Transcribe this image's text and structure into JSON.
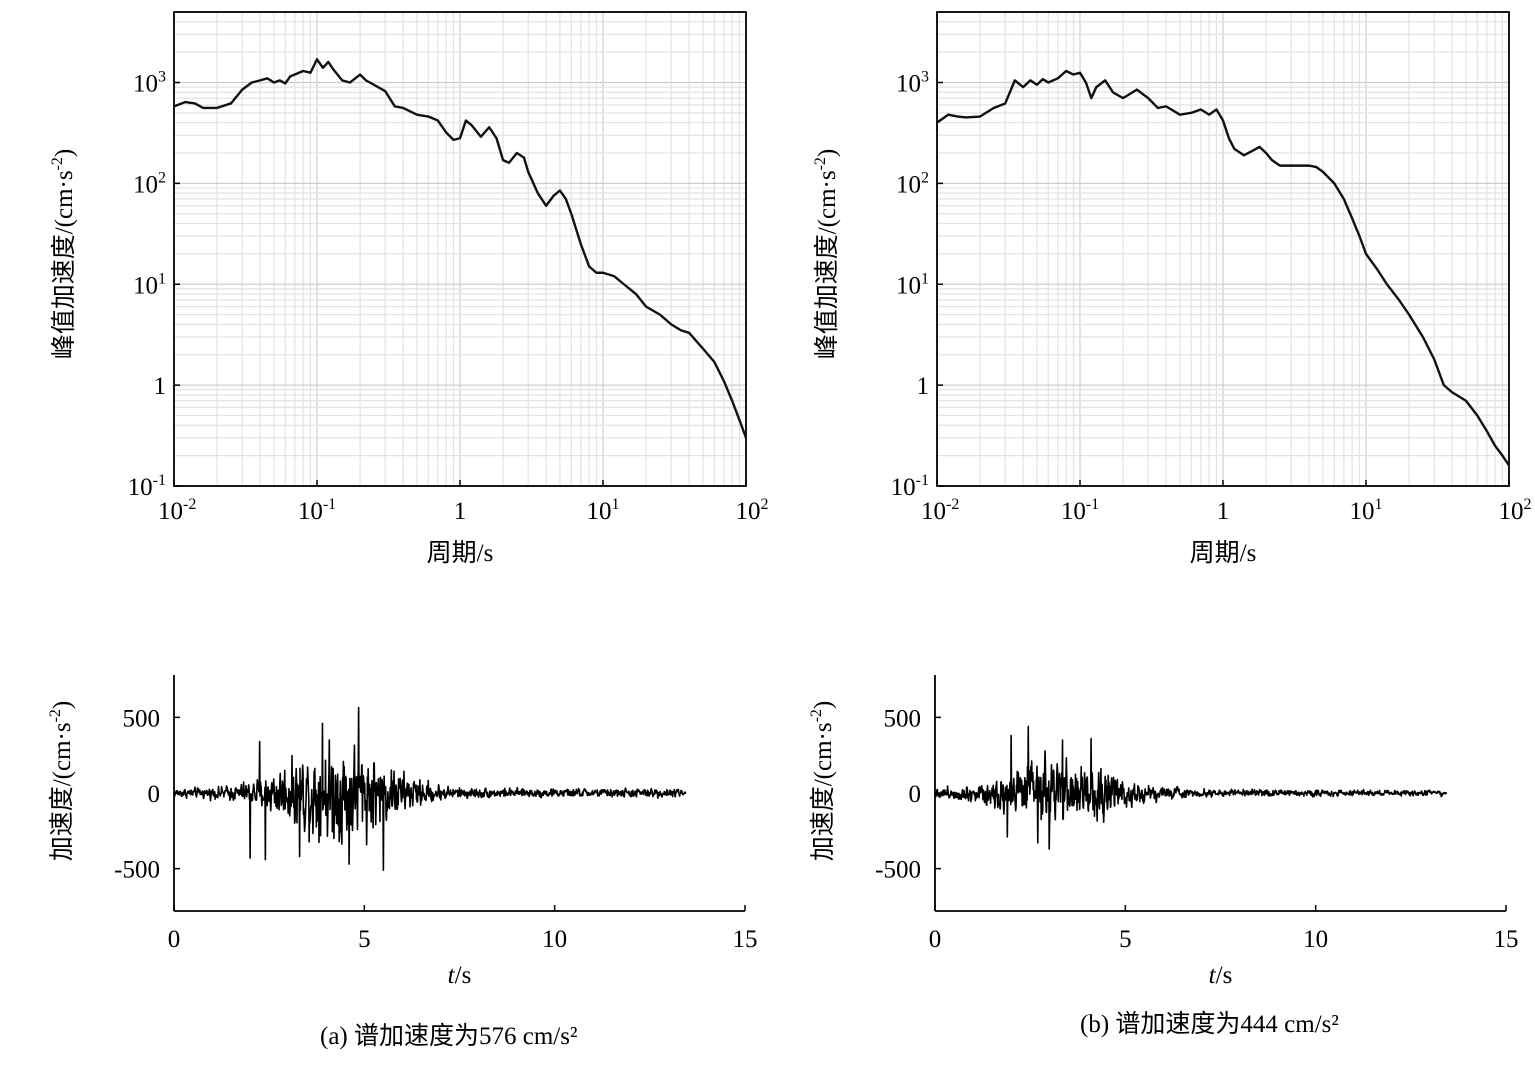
{
  "panels": [
    {
      "caption": "(a) 谱加速度为576 cm/s²",
      "spectrum_chart": {
        "type": "line",
        "xscale": "log",
        "yscale": "log",
        "xlabel": "周期/s",
        "ylabel": "峰值加速度/(cm·s⁻²)",
        "xlim": [
          0.01,
          100
        ],
        "ylim": [
          0.1,
          5000
        ],
        "xticks": [
          0.01,
          0.1,
          1,
          10,
          100
        ],
        "xtick_labels": [
          [
            "10",
            "-2"
          ],
          [
            "10",
            "-1"
          ],
          [
            "1",
            ""
          ],
          [
            "10",
            "1"
          ],
          [
            "10",
            "2"
          ]
        ],
        "yticks": [
          0.1,
          1,
          10,
          100,
          1000
        ],
        "ytick_labels": [
          [
            "10",
            "-1"
          ],
          [
            "1",
            ""
          ],
          [
            "10",
            "1"
          ],
          [
            "10",
            "2"
          ],
          [
            "10",
            "3"
          ]
        ],
        "grid": true,
        "line_color": "#111111",
        "x": [
          0.01,
          0.012,
          0.014,
          0.016,
          0.02,
          0.025,
          0.03,
          0.035,
          0.04,
          0.045,
          0.05,
          0.055,
          0.06,
          0.065,
          0.07,
          0.08,
          0.09,
          0.1,
          0.11,
          0.12,
          0.13,
          0.15,
          0.17,
          0.2,
          0.22,
          0.25,
          0.3,
          0.35,
          0.4,
          0.5,
          0.6,
          0.7,
          0.8,
          0.9,
          1.0,
          1.1,
          1.2,
          1.4,
          1.6,
          1.8,
          2.0,
          2.2,
          2.5,
          2.8,
          3.0,
          3.5,
          4.0,
          4.5,
          5.0,
          5.5,
          6.0,
          7.0,
          8.0,
          9.0,
          10,
          12,
          14,
          17,
          20,
          25,
          30,
          35,
          40,
          50,
          60,
          70,
          80,
          90,
          100
        ],
        "y": [
          580,
          640,
          620,
          560,
          560,
          620,
          850,
          1000,
          1050,
          1100,
          1000,
          1050,
          980,
          1150,
          1200,
          1300,
          1250,
          1700,
          1400,
          1600,
          1350,
          1050,
          1000,
          1200,
          1050,
          950,
          820,
          580,
          560,
          480,
          460,
          420,
          320,
          270,
          280,
          420,
          380,
          290,
          360,
          280,
          170,
          160,
          200,
          180,
          130,
          80,
          60,
          75,
          85,
          70,
          50,
          25,
          15,
          13,
          13,
          12,
          10,
          8,
          6,
          5,
          4,
          3.5,
          3.3,
          2.3,
          1.7,
          1.1,
          0.7,
          0.45,
          0.3
        ]
      },
      "time_chart": {
        "type": "line",
        "xlabel": "t/s",
        "xlabel_italic": "t",
        "xlabel_unit": "/s",
        "ylabel": "加速度/(cm·s⁻²)",
        "xlim": [
          0,
          15
        ],
        "ylim": [
          -780,
          780
        ],
        "xticks": [
          0,
          5,
          10,
          15
        ],
        "yticks": [
          500,
          0,
          -500
        ],
        "ytick_labels": [
          "500",
          "0",
          "-500"
        ],
        "duration": 13.45,
        "dt": 0.01,
        "envelope_peak_time": 4.3,
        "envelope_width": 1.7,
        "peak_amplitude": 430,
        "background_amplitude": 42,
        "extremes": [
          [
            2.0,
            -430
          ],
          [
            2.4,
            -440
          ],
          [
            4.85,
            565
          ],
          [
            5.5,
            -510
          ],
          [
            4.6,
            -470
          ],
          [
            2.25,
            340
          ],
          [
            3.9,
            460
          ],
          [
            3.3,
            -420
          ]
        ],
        "line_color": "#000000"
      }
    },
    {
      "caption": "(b) 谱加速度为444 cm/s²",
      "spectrum_chart": {
        "type": "line",
        "xscale": "log",
        "yscale": "log",
        "xlabel": "周期/s",
        "ylabel": "峰值加速度/(cm·s⁻²)",
        "xlim": [
          0.01,
          100
        ],
        "ylim": [
          0.1,
          5000
        ],
        "xticks": [
          0.01,
          0.1,
          1,
          10,
          100
        ],
        "xtick_labels": [
          [
            "10",
            "-2"
          ],
          [
            "10",
            "-1"
          ],
          [
            "1",
            ""
          ],
          [
            "10",
            "1"
          ],
          [
            "10",
            "2"
          ]
        ],
        "yticks": [
          0.1,
          1,
          10,
          100,
          1000
        ],
        "ytick_labels": [
          [
            "10",
            "-1"
          ],
          [
            "1",
            ""
          ],
          [
            "10",
            "1"
          ],
          [
            "10",
            "2"
          ],
          [
            "10",
            "3"
          ]
        ],
        "grid": true,
        "line_color": "#111111",
        "x": [
          0.01,
          0.012,
          0.014,
          0.016,
          0.02,
          0.025,
          0.03,
          0.035,
          0.04,
          0.045,
          0.05,
          0.055,
          0.06,
          0.07,
          0.08,
          0.09,
          0.1,
          0.11,
          0.12,
          0.13,
          0.15,
          0.17,
          0.2,
          0.25,
          0.3,
          0.35,
          0.4,
          0.5,
          0.6,
          0.7,
          0.8,
          0.9,
          1.0,
          1.1,
          1.2,
          1.4,
          1.6,
          1.8,
          2.0,
          2.2,
          2.5,
          3.0,
          3.5,
          4.0,
          4.5,
          5.0,
          6.0,
          7.0,
          8.0,
          9.0,
          10,
          12,
          14,
          17,
          20,
          25,
          30,
          35,
          40,
          50,
          60,
          70,
          80,
          90,
          100
        ],
        "y": [
          400,
          480,
          460,
          450,
          460,
          560,
          620,
          1050,
          900,
          1050,
          950,
          1080,
          1000,
          1100,
          1300,
          1200,
          1250,
          1000,
          700,
          900,
          1050,
          800,
          700,
          850,
          700,
          560,
          580,
          480,
          500,
          540,
          480,
          540,
          420,
          280,
          220,
          190,
          210,
          230,
          200,
          170,
          150,
          150,
          150,
          150,
          145,
          130,
          100,
          70,
          45,
          30,
          20,
          14,
          10,
          7,
          5,
          3,
          1.8,
          1.0,
          0.85,
          0.7,
          0.5,
          0.35,
          0.25,
          0.2,
          0.16
        ]
      },
      "time_chart": {
        "type": "line",
        "xlabel": "t/s",
        "xlabel_italic": "t",
        "xlabel_unit": "/s",
        "ylabel": "加速度/(cm·s⁻²)",
        "xlim": [
          0,
          15
        ],
        "ylim": [
          -780,
          780
        ],
        "xticks": [
          0,
          5,
          10,
          15
        ],
        "yticks": [
          500,
          0,
          -500
        ],
        "ytick_labels": [
          "500",
          "0",
          "-500"
        ],
        "duration": 13.45,
        "dt": 0.01,
        "envelope_peak_time": 3.3,
        "envelope_width": 1.9,
        "peak_amplitude": 270,
        "background_amplitude": 30,
        "extremes": [
          [
            2.45,
            440
          ],
          [
            2.0,
            380
          ],
          [
            3.0,
            -370
          ],
          [
            3.35,
            350
          ],
          [
            4.1,
            360
          ],
          [
            1.9,
            -290
          ],
          [
            2.7,
            -330
          ]
        ],
        "line_color": "#000000"
      }
    }
  ]
}
